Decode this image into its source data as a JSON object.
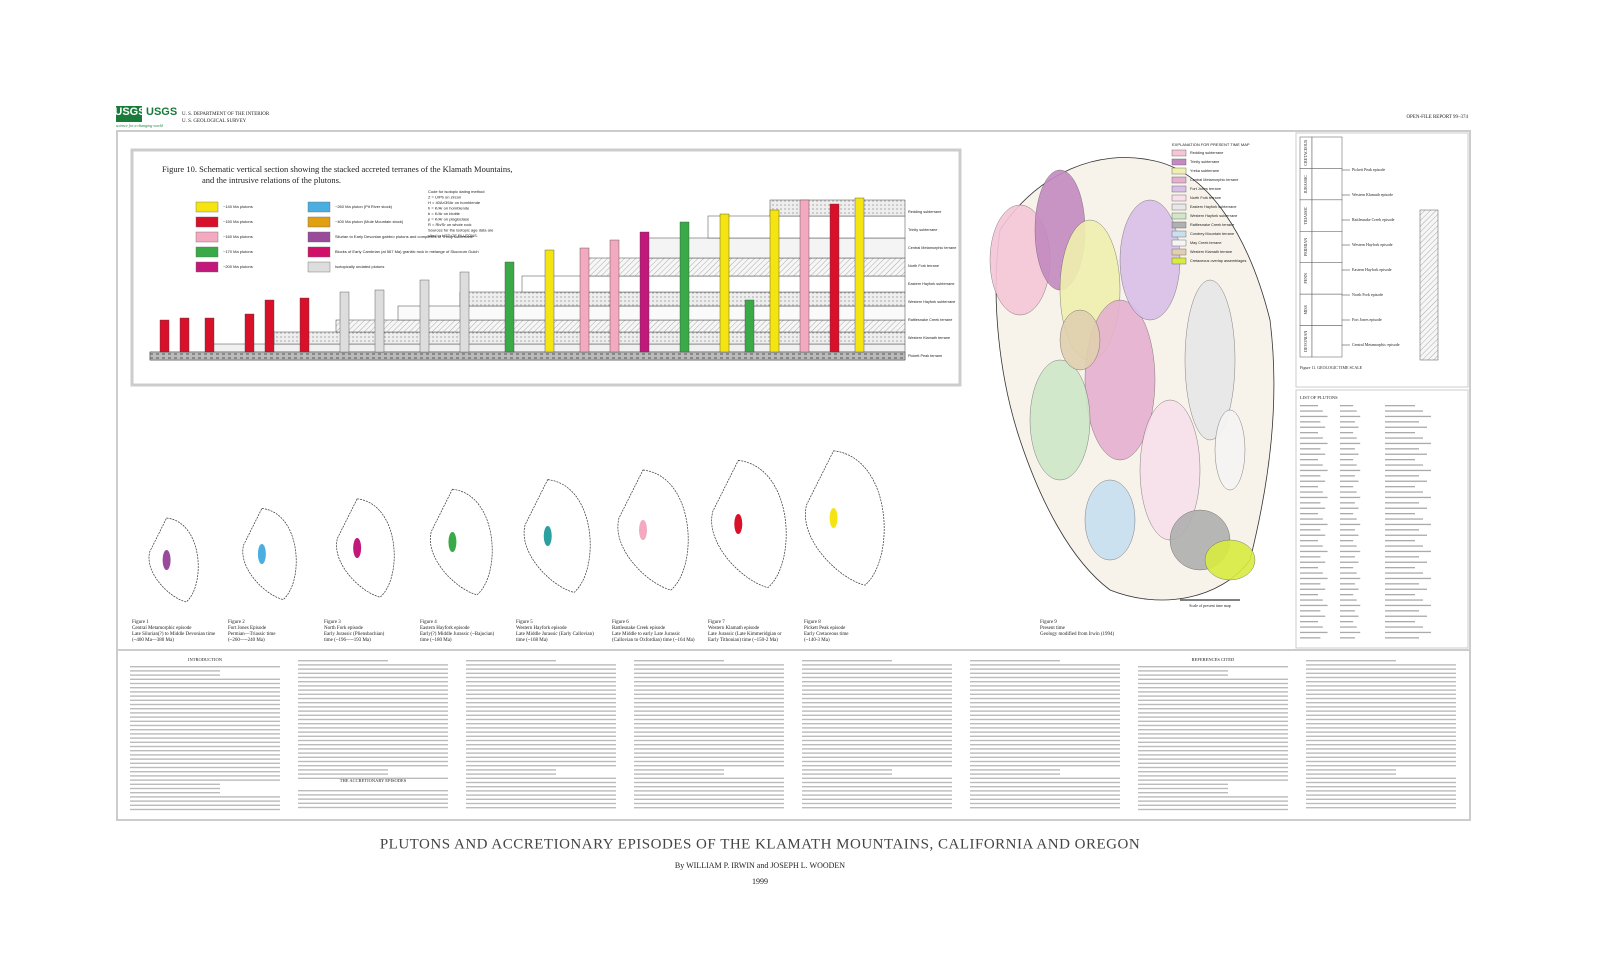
{
  "header": {
    "logo": "USGS",
    "tagline": "science for a changing world",
    "agency": [
      "U. S. DEPARTMENT OF THE INTERIOR",
      "U. S. GEOLOGICAL SURVEY"
    ],
    "report": "OPEN-FILE REPORT 99–374"
  },
  "figure10": {
    "title": [
      "Figure 10. Schematic vertical section showing the stacked accreted terranes of the Klamath Mountains,",
      "and the intrusive relations of the plutons."
    ],
    "legend": [
      {
        "label": "~140 Ma plutons",
        "color": "#f4e512"
      },
      {
        "label": "~150 Ma plutons",
        "color": "#d8102a"
      },
      {
        "label": "~160 Ma plutons",
        "color": "#f3a9c0"
      },
      {
        "label": "~170 Ma plutons",
        "color": "#3aaa48"
      },
      {
        "label": "~200 Ma plutons",
        "color": "#c2187b"
      },
      {
        "label": "~260 Ma pluton (Pit River stock)",
        "color": "#4aaee0"
      },
      {
        "label": "~400 Ma pluton (Mule Mountain stock)",
        "color": "#e0a010"
      },
      {
        "label": "Silurian to Early Devonian gabbro plutons and complexes of Trinity subterrane",
        "color": "#9a4a9a"
      },
      {
        "label": "Blocks of Early Cambrian (at 567 Ma) granitic rock in melange of Skooxum Gulch",
        "color": "#d0106a"
      },
      {
        "label": "Isotopically undated plutons",
        "color": "#dddddd"
      }
    ],
    "code_note": [
      "Code for isotopic dating method",
      "Z = U/Pb on zircon",
      "H = 40Ar/39Ar on hornblende",
      "h = K/Ar on hornblende",
      "b = K/Ar on biotite",
      "p = K/Ar on plagioclase",
      "R = Rb/Sr on whole rock",
      "Sources for the isotopic age data are",
      "cited in LIST OF PLUTONS."
    ],
    "terranes": [
      "Redding subterrane",
      "Trinity subterrane",
      "Central Metamorphic terrane",
      "North Fork terrane",
      "Eastern Hayfork subterrane",
      "Western Hayfork subterrane",
      "Rattlesnake Creek terrane",
      "Western Klamath terrane",
      "Pickett Peak terrane"
    ]
  },
  "timescale": {
    "periods": [
      "CRETACEOUS",
      "JURASSIC",
      "TRIASSIC",
      "PERMIAN",
      "PENN",
      "MISS",
      "DEVONIAN"
    ],
    "episodes": [
      "Pickett Peak episode",
      "Western Klamath episode",
      "Rattlesnake Creek episode",
      "Western Hayfork episode",
      "Eastern Hayfork episode",
      "North Fork episode",
      "Fort Jones episode",
      "Central Metamorphic episode"
    ],
    "caption": "Figure 11. GEOLOGIC TIME SCALE"
  },
  "map": {
    "explanation_title": "EXPLANATION FOR PRESENT TIME MAP",
    "units": [
      {
        "label": "Redding subterrane",
        "color": "#f5c6d8"
      },
      {
        "label": "Trinity subterrane",
        "color": "#c48ac0"
      },
      {
        "label": "Yreka subterrane",
        "color": "#f0f0b0"
      },
      {
        "label": "Central Metamorphic terrane",
        "color": "#e6b0d0"
      },
      {
        "label": "Fort Jones terrane",
        "color": "#d8c0e8"
      },
      {
        "label": "North Fork terrane",
        "color": "#f8e0ec"
      },
      {
        "label": "Eastern Hayfork subterrane",
        "color": "#e8e8e8"
      },
      {
        "label": "Western Hayfork subterrane",
        "color": "#cfe7c8"
      },
      {
        "label": "Rattlesnake Creek terrane",
        "color": "#b0b0b0"
      },
      {
        "label": "Condrey Mountain terrane",
        "color": "#c8e0f0"
      },
      {
        "label": "May Creek terrane",
        "color": "#f5f5f5"
      },
      {
        "label": "Western Klamath terrane",
        "color": "#e0d0b0"
      },
      {
        "label": "Cretaceous overlap assemblages",
        "color": "#d8ec40"
      }
    ],
    "scale": "Scale of present time map"
  },
  "plutons_title": "LIST OF PLUTONS",
  "figures": [
    {
      "label": "Figure 1",
      "lines": [
        "Central Metamorphic episode",
        "Late Silurian(?) to Middle Devonian time",
        "(~400 Ma—380 Ma)"
      ]
    },
    {
      "label": "Figure 2",
      "lines": [
        "Fort Jones Episode",
        "Permian—Triassic time",
        "(~260—~240 Ma)"
      ]
    },
    {
      "label": "Figure 3",
      "lines": [
        "North Fork episode",
        "Early Jurassic (Pliensbachian)",
        "time (~196—~193 Ma)"
      ]
    },
    {
      "label": "Figure 4",
      "lines": [
        "Eastern Hayfork episode",
        "Early(?) Middle Jurassic (~Bajocian)",
        "time (~180 Ma)"
      ]
    },
    {
      "label": "Figure 5",
      "lines": [
        "Western Hayfork episode",
        "Late Middle Jurassic (Early Callovian)",
        "time (~168 Ma)"
      ]
    },
    {
      "label": "Figure 6",
      "lines": [
        "Rattlesnake Creek episode",
        "Late Middle to early Late Jurassic",
        "(Callovian to Oxfordian) time (~164 Ma)"
      ]
    },
    {
      "label": "Figure 7",
      "lines": [
        "Western Klamath episode",
        "Late Jurassic (Late Kimmeridgian or",
        "Early Tithonian) time (~150-2 Ma)"
      ]
    },
    {
      "label": "Figure 8",
      "lines": [
        "Pickett Peak episode",
        "Early Cretaceous time",
        "(~140-3 Ma)"
      ]
    },
    {
      "label": "Figure 9",
      "lines": [
        "Present time",
        "Geology modified from Irwin (1994)"
      ]
    }
  ],
  "text": {
    "headings": [
      "INTRODUCTION",
      "THE ACCRETIONARY EPISODES",
      "REFERENCES CITED"
    ]
  },
  "footer": {
    "title": "PLUTONS AND ACCRETIONARY EPISODES OF THE KLAMATH MOUNTAINS, CALIFORNIA AND OREGON",
    "authors": "By WILLIAM P. IRWIN and JOSEPH L. WOODEN",
    "year": "1999"
  }
}
